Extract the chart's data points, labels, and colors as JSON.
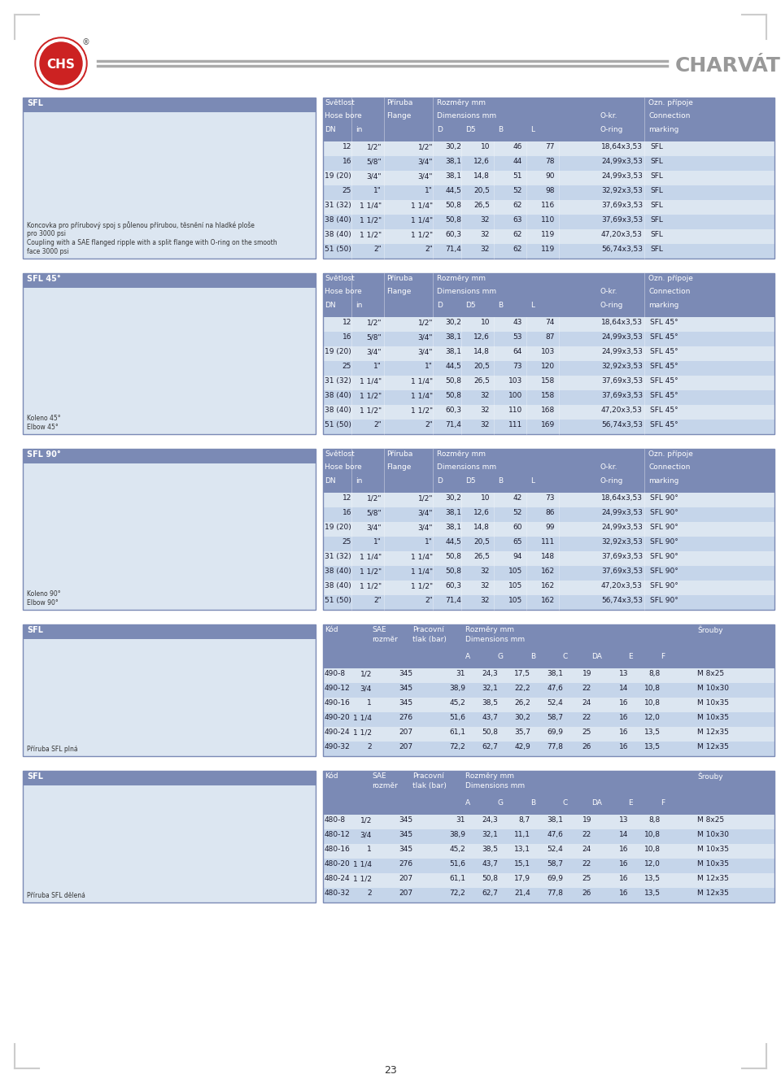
{
  "page_bg": "#ffffff",
  "header_line_color": "#aaaaaa",
  "table_header_bg": "#7b8ab5",
  "table_row_even_bg": "#dce6f1",
  "table_row_odd_bg": "#c5d5ea",
  "table_text_color": "#1a1a2e",
  "header_text_color": "#ffffff",
  "section_label_bg": "#7b8ab5",
  "section_label_text": "#ffffff",
  "diagram_box_bg": "#dce6f1",
  "diagram_box_border": "#7b8ab5",
  "table1_title": "SFL",
  "table1_headers": [
    [
      "Světlost",
      "Příruba",
      "Rozměry mm",
      "",
      "Ozn. přípoje"
    ],
    [
      "Hose bore",
      "Flange",
      "Dimensions mm",
      "O-kr.",
      "Connection"
    ],
    [
      "DN",
      "in",
      "D  D5  B  L",
      "O-ring",
      "marking"
    ]
  ],
  "table1_rows": [
    [
      "12",
      "1/2\"",
      "1/2\"",
      "30,2",
      "10",
      "46",
      "77",
      "18,64x3,53",
      "SFL"
    ],
    [
      "16",
      "5/8\"",
      "3/4\"",
      "38,1",
      "12,6",
      "44",
      "78",
      "24,99x3,53",
      "SFL"
    ],
    [
      "19 (20)",
      "3/4\"",
      "3/4\"",
      "38,1",
      "14,8",
      "51",
      "90",
      "24,99x3,53",
      "SFL"
    ],
    [
      "25",
      "1\"",
      "1\"",
      "44,5",
      "20,5",
      "52",
      "98",
      "32,92x3,53",
      "SFL"
    ],
    [
      "31 (32)",
      "1 1/4\"",
      "1 1/4\"",
      "50,8",
      "26,5",
      "62",
      "116",
      "37,69x3,53",
      "SFL"
    ],
    [
      "38 (40)",
      "1 1/2\"",
      "1 1/4\"",
      "50,8",
      "32",
      "63",
      "110",
      "37,69x3,53",
      "SFL"
    ],
    [
      "38 (40)",
      "1 1/2\"",
      "1 1/2\"",
      "60,3",
      "32",
      "62",
      "119",
      "47,20x3,53",
      "SFL"
    ],
    [
      "51 (50)",
      "2\"",
      "2\"",
      "71,4",
      "32",
      "62",
      "119",
      "56,74x3,53",
      "SFL"
    ]
  ],
  "table2_title": "SFL 45°",
  "table2_rows": [
    [
      "12",
      "1/2\"",
      "1/2\"",
      "30,2",
      "10",
      "43",
      "74",
      "18,64x3,53",
      "SFL 45°"
    ],
    [
      "16",
      "5/8\"",
      "3/4\"",
      "38,1",
      "12,6",
      "53",
      "87",
      "24,99x3,53",
      "SFL 45°"
    ],
    [
      "19 (20)",
      "3/4\"",
      "3/4\"",
      "38,1",
      "14,8",
      "64",
      "103",
      "24,99x3,53",
      "SFL 45°"
    ],
    [
      "25",
      "1\"",
      "1\"",
      "44,5",
      "20,5",
      "73",
      "120",
      "32,92x3,53",
      "SFL 45°"
    ],
    [
      "31 (32)",
      "1 1/4\"",
      "1 1/4\"",
      "50,8",
      "26,5",
      "103",
      "158",
      "37,69x3,53",
      "SFL 45°"
    ],
    [
      "38 (40)",
      "1 1/2\"",
      "1 1/4\"",
      "50,8",
      "32",
      "100",
      "158",
      "37,69x3,53",
      "SFL 45°"
    ],
    [
      "38 (40)",
      "1 1/2\"",
      "1 1/2\"",
      "60,3",
      "32",
      "110",
      "168",
      "47,20x3,53",
      "SFL 45°"
    ],
    [
      "51 (50)",
      "2\"",
      "2\"",
      "71,4",
      "32",
      "111",
      "169",
      "56,74x3,53",
      "SFL 45°"
    ]
  ],
  "table3_title": "SFL 90°",
  "table3_rows": [
    [
      "12",
      "1/2\"",
      "1/2\"",
      "30,2",
      "10",
      "42",
      "73",
      "18,64x3,53",
      "SFL 90°"
    ],
    [
      "16",
      "5/8\"",
      "3/4\"",
      "38,1",
      "12,6",
      "52",
      "86",
      "24,99x3,53",
      "SFL 90°"
    ],
    [
      "19 (20)",
      "3/4\"",
      "3/4\"",
      "38,1",
      "14,8",
      "60",
      "99",
      "24,99x3,53",
      "SFL 90°"
    ],
    [
      "25",
      "1\"",
      "1\"",
      "44,5",
      "20,5",
      "65",
      "111",
      "32,92x3,53",
      "SFL 90°"
    ],
    [
      "31 (32)",
      "1 1/4\"",
      "1 1/4\"",
      "50,8",
      "26,5",
      "94",
      "148",
      "37,69x3,53",
      "SFL 90°"
    ],
    [
      "38 (40)",
      "1 1/2\"",
      "1 1/4\"",
      "50,8",
      "32",
      "105",
      "162",
      "37,69x3,53",
      "SFL 90°"
    ],
    [
      "38 (40)",
      "1 1/2\"",
      "1 1/2\"",
      "60,3",
      "32",
      "105",
      "162",
      "47,20x3,53",
      "SFL 90°"
    ],
    [
      "51 (50)",
      "2\"",
      "2\"",
      "71,4",
      "32",
      "105",
      "162",
      "56,74x3,53",
      "SFL 90°"
    ]
  ],
  "table4_title": "SFL (flange full)",
  "table4_headers": [
    "Kód",
    "SAE\nrozměr",
    "Pracovní\ntlak (bar)",
    "Rozměry mm\nDimensions mm\nA  G  B  C  DA  E  F",
    "Šrouby"
  ],
  "table4_rows": [
    [
      "490-8",
      "1/2",
      "345",
      "31",
      "24,3",
      "17,5",
      "38,1",
      "19",
      "13",
      "8,8",
      "M 8x25"
    ],
    [
      "490-12",
      "3/4",
      "345",
      "38,9",
      "32,1",
      "22,2",
      "47,6",
      "22",
      "14",
      "10,8",
      "M 10x30"
    ],
    [
      "490-16",
      "1",
      "345",
      "45,2",
      "38,5",
      "26,2",
      "52,4",
      "24",
      "16",
      "10,8",
      "M 10x35"
    ],
    [
      "490-20",
      "1 1/4",
      "276",
      "51,6",
      "43,7",
      "30,2",
      "58,7",
      "22",
      "16",
      "12,0",
      "M 10x35"
    ],
    [
      "490-24",
      "1 1/2",
      "207",
      "61,1",
      "50,8",
      "35,7",
      "69,9",
      "25",
      "16",
      "13,5",
      "M 12x35"
    ],
    [
      "490-32",
      "2",
      "207",
      "72,2",
      "62,7",
      "42,9",
      "77,8",
      "26",
      "16",
      "13,5",
      "M 12x35"
    ]
  ],
  "table5_title": "SFL (flange split)",
  "table5_rows": [
    [
      "480-8",
      "1/2",
      "345",
      "31",
      "24,3",
      "8,7",
      "38,1",
      "19",
      "13",
      "8,8",
      "M 8x25"
    ],
    [
      "480-12",
      "3/4",
      "345",
      "38,9",
      "32,1",
      "11,1",
      "47,6",
      "22",
      "14",
      "10,8",
      "M 10x30"
    ],
    [
      "480-16",
      "1",
      "345",
      "45,2",
      "38,5",
      "13,1",
      "52,4",
      "24",
      "16",
      "10,8",
      "M 10x35"
    ],
    [
      "480-20",
      "1 1/4",
      "276",
      "51,6",
      "43,7",
      "15,1",
      "58,7",
      "22",
      "16",
      "12,0",
      "M 10x35"
    ],
    [
      "480-24",
      "1 1/2",
      "207",
      "61,1",
      "50,8",
      "17,9",
      "69,9",
      "25",
      "16",
      "13,5",
      "M 12x35"
    ],
    [
      "480-32",
      "2",
      "207",
      "72,2",
      "62,7",
      "21,4",
      "77,8",
      "26",
      "16",
      "13,5",
      "M 12x35"
    ]
  ],
  "diagram1_text": "Koncovka pro přírubový spoj s půlenou přírubou, těsnění na hladké ploše\npro 3000 psi\nCoupling with a SAE flanged ripple with a split flange with O-ring on the smooth\nface 3000 psi",
  "diagram2_text": "Koleno 45°\nElbow 45°",
  "diagram3_text": "Koleno 90°\nElbow 90°",
  "diagram4_text": "Příruba SFL plná",
  "diagram5_text": "Příruba SFL dělená",
  "page_number": "23",
  "company_name": "CHARVÁT"
}
